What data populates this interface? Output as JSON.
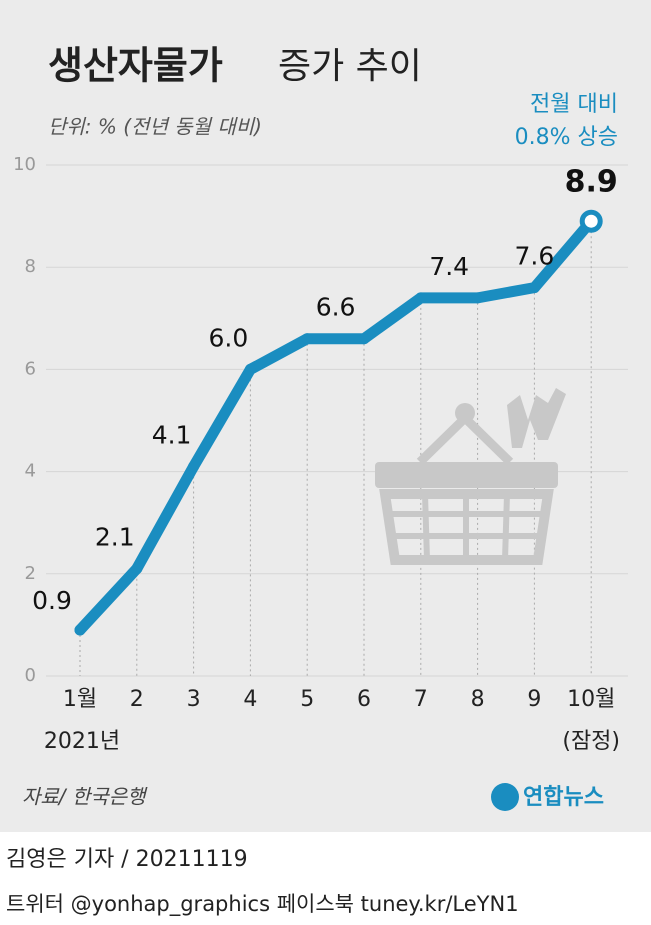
{
  "chart_data": {
    "type": "line",
    "title_parts": [
      "생산자물가",
      "증가 추이"
    ],
    "unit": "단위: % (전년 동월 대비)",
    "annotation": [
      "전월 대비",
      "0.8% 상승"
    ],
    "categories": [
      "1월",
      "2",
      "3",
      "4",
      "5",
      "6",
      "7",
      "8",
      "9",
      "10월"
    ],
    "category_notes": [
      "2021년",
      null,
      null,
      null,
      null,
      null,
      null,
      null,
      null,
      "(잠정)"
    ],
    "values": [
      0.9,
      2.1,
      4.1,
      6,
      6.6,
      6.6,
      7.4,
      7.4,
      7.6,
      8.9
    ],
    "value_labels": [
      "0.9",
      "2.1",
      "4.1",
      "6.0",
      "6.6",
      null,
      "7.4",
      null,
      "7.6",
      "8.9"
    ],
    "color": "#1a8dc0",
    "ylim": [
      0,
      10
    ],
    "yticks": [
      0,
      2,
      4,
      6,
      8,
      10
    ],
    "grid": true,
    "source": "자료/ 한국은행",
    "logo": "연합뉴스"
  },
  "footer": {
    "byline": "김영은 기자 / 20211119",
    "social": "트위터 @yonhap_graphics  페이스북 tuney.kr/LeYN1"
  }
}
